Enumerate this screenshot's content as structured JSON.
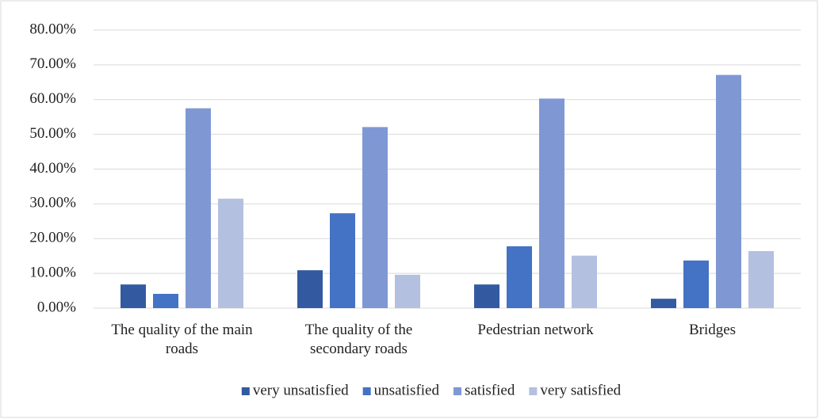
{
  "chart_data": {
    "type": "bar",
    "categories": [
      "The quality of the main roads",
      "The quality of the secondary roads",
      "Pedestrian network",
      "Bridges"
    ],
    "series": [
      {
        "name": "very unsatisfied",
        "color": "#335aa0",
        "values": [
          6.8,
          10.9,
          6.8,
          2.7
        ]
      },
      {
        "name": "unsatisfied",
        "color": "#4472c4",
        "values": [
          4.1,
          27.3,
          17.8,
          13.7
        ]
      },
      {
        "name": "satisfied",
        "color": "#7f98d4",
        "values": [
          57.5,
          52.1,
          60.3,
          67.1
        ]
      },
      {
        "name": "very satisfied",
        "color": "#b4c0e0",
        "values": [
          31.5,
          9.6,
          15.1,
          16.4
        ]
      }
    ],
    "ylim": [
      0,
      80
    ],
    "yticks": [
      {
        "value": 0,
        "label": "0.00%"
      },
      {
        "value": 10,
        "label": "10.00%"
      },
      {
        "value": 20,
        "label": "20.00%"
      },
      {
        "value": 30,
        "label": "30.00%"
      },
      {
        "value": 40,
        "label": "40.00%"
      },
      {
        "value": 50,
        "label": "50.00%"
      },
      {
        "value": 60,
        "label": "60.00%"
      },
      {
        "value": 70,
        "label": "70.00%"
      },
      {
        "value": 80,
        "label": "80.00%"
      }
    ],
    "grid": true,
    "legend": "bottom"
  }
}
